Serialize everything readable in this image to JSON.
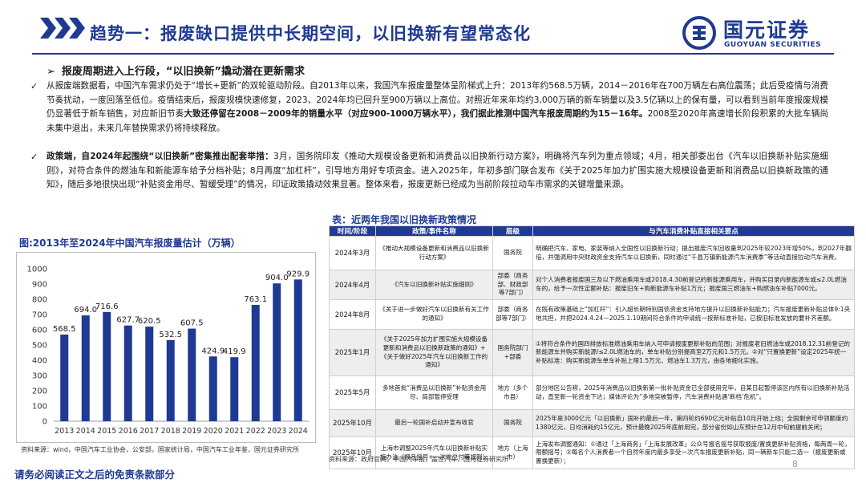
{
  "header": {
    "title": "趋势一：报废缺口提供中长期空间，以旧换新有望常态化",
    "logo_cn": "国元证券",
    "logo_en": "GUOYUAN SECURITIES"
  },
  "lead": "报废周期进入上行段，“以旧换新”撬动潜在更新需求",
  "para1": {
    "a": "从报废端数据看，中国汽车需求仍处于“增长+更新”的双轮驱动阶段。自2013年以来，我国汽车报废量整体呈阶梯式上升：2013年约568.5万辆，2014－2016年在700万辆左右高位震荡；此后受疫情与消费节奏扰动，一度回落至低位。疫情结束后，报废规模快速修复，2023、2024年均已回升至900万辆以上高位。对照近年来年均约3,000万辆的新车销量以及3.5亿辆以上的保有量，可以看到当前年度报废规模仍显著低于新车销售，对应新旧节奏",
    "b": "大致还停留在2008－2009年的销量水平（对应900-1000万辆水平），我们据此推测中国汽车报废周期约为15－16年。",
    "c": "2008至2020年高速增长阶段积累的大批车辆尚未集中退出，未来几年替换需求仍将持续释放。"
  },
  "para2": {
    "a": "政策端，自2024年起围绕“以旧换新”密集推出配套举措：",
    "b": "3月，国务院印发《推动大规模设备更新和消费品以旧换新行动方案》，明确将汽车列为重点领域；4月，相关部委出台《汽车以旧换新补贴实施细则》，对符合条件的燃油车和新能源车给予分档补贴；8月再度“加杠杆”，引导地方用好专项资金。进入2025年，年初多部门联合发布《关于2025年加力扩围实施大规模设备更新和消费品以旧换新政策的通知》，随后多地很快出现“补贴资金用尽、暂缓受理”的情况，印证政策撬动效果显著。整体来看，报废更新已经成为当前阶段拉动车市需求的关键增量来源。"
  },
  "chart": {
    "title": "图:2013年至2024年中国汽车报废量估计（万辆）",
    "source": "资料来源：wind，中国汽车工业协会，公安部，国家统计局，中国汽车工业年鉴，国元证券研究所"
  },
  "chart_data": {
    "type": "bar",
    "title": "图:2013年至2024年中国汽车报废量估计（万辆）",
    "categories": [
      "2013",
      "2014",
      "2015",
      "2016",
      "2017",
      "2018",
      "2019",
      "2020",
      "2021",
      "2022",
      "2023",
      "2024"
    ],
    "values": [
      568.5,
      694.0,
      716.6,
      627.7,
      620.5,
      532.5,
      607.5,
      424.9,
      419.9,
      763.1,
      904.0,
      929.9
    ],
    "value_labels": [
      "568.5",
      "694.0",
      "716.6",
      "627.7",
      "620.5",
      "532.5",
      "607.5",
      "424.9",
      "419.9",
      "763.1",
      "904.0",
      "929.9"
    ],
    "ylim": [
      0,
      1000
    ],
    "yticks": [
      "0",
      "100",
      "200",
      "300",
      "400",
      "500",
      "600",
      "700",
      "800",
      "900",
      "1000"
    ],
    "grid": false,
    "colors": {
      "bar": "#1f3a93"
    }
  },
  "table": {
    "title": "表：近两年我国以旧换新政策情况",
    "headers": [
      "时间/阶段",
      "政策/事件名称",
      "层级",
      "与汽车消费补贴直接相关要点"
    ],
    "rows": [
      [
        "2024年3月",
        "《推动大规模设备更新和消费品以旧换新行动方案》",
        "国务院",
        "明确把汽车、家电、家装等纳入全国性以旧换新行动；提出报废汽车回收量到2025年较2023年增50%，到2027年翻倍，并强调用中央财政资金支持汽车以旧换新，同时通过“千县万镇新能源汽车消费季”等活动直接拉动汽车消费。"
      ],
      [
        "2024年4月",
        "《汽车以旧换新补贴实施细则》",
        "部委（商务部、财政部等7部门）",
        "对个人消费者报废国三及以下燃油乘用车或2018.4.30前登记的新能源乘用车，并购买目录内新能源车或≤2.0L燃油车的，给予一次性定额补贴：报废旧车+购新能源车补贴1万元；报废国三燃油车+购燃油车补贴7000元。"
      ],
      [
        "2024年8月",
        "《关于进一步做好汽车以旧换新有关工作的通知》",
        "部委（商务部等7部门）",
        "在既有政策基础上“加杠杆”：引入超长期特别国债资金支持地方提升以旧换新补贴能力；汽车报废更新补贴总体9:1央地共担，并把2024.4.24－2025.1.10期间符合条件的申请统一按新标准补贴，已按旧标准发放的要补齐差额。"
      ],
      [
        "2025年1月",
        "《关于2025年加力扩围实施大规模设备更新和消费品以旧换新政策的通知》+《关于做好2025年汽车以旧换新工作的通知》",
        "国务院部门+部委",
        "①将符合条件的国四排放标准燃油乘用车纳入可申请报废更新补贴的范围；对报废老旧燃油车或2018.12.31前登记的新能源车并购买新能源/≤2.0L燃油车的，单车补贴分别提高至2万元和1.5万元。②对“只置换更新”设定2025年统一补贴标准：购买新能源车单车补贴上限1.5万元、燃油车1.3万元，由各地细化实施。"
      ],
      [
        "2025年5月",
        "多地首批“消费品以旧换新”补贴资金用尽、局部暂停受理",
        "地方（多个市县）",
        "部分地区公告称，2025年消费品以旧换新第一批补贴资金已全部使用完毕，自某日起暂停该区内所有以旧换新补贴活动，直至新一轮资金下达；媒体评论为“多地突被暂停，汽车消费补贴遇‘断档’危机”。"
      ],
      [
        "2025年10月",
        "最后一轮国补启动并宣布收官",
        "国务院",
        "2025年是3000亿元「以旧换新」国补的最后一年，第四轮约690亿元补贴自10月开始上线；全国剩余可申领额度约1380亿元，日均消耗约15亿元，预计最晚2025年底前用完，部分省份如山东预计在12月中旬前提前关闭；"
      ],
      [
        "2025年10月",
        "上海市调整2025年汽车以旧换新补贴实施办法（报名摇号+一次性兑付等规则）",
        "地方（上海市）",
        "上海发布调整通知：①通过「上海商务」「上海发展改革」公众号报名摇号获取报废/置换更新补贴资格，每两周一轮，限额摇号；②每名个人消费者一个自然年度内最多享受一次汽车报废更新补贴，同一辆新车只能二选一（报废更新或置换更新）；"
      ]
    ],
    "source": "资料来源：政府官网，中国汽车报，盖世汽车，国元证券研究所"
  },
  "page_number": "8",
  "footer": "请务必阅读正文之后的免责条款部分"
}
